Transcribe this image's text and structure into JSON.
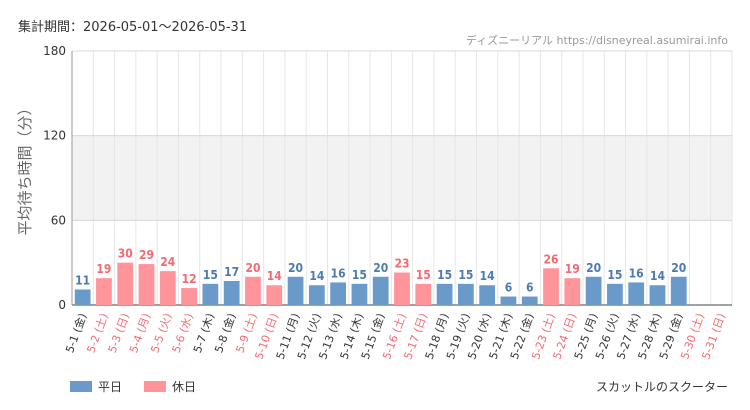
{
  "header": {
    "period_label": "集計期間：2026-05-01～2026-05-31",
    "credit": "ディズニーリアル https://disneyreal.asumirai.info"
  },
  "footer": {
    "attraction": "スカットルのスクーター"
  },
  "colors": {
    "weekday": "#6a9ac9",
    "holiday": "#ff949a",
    "weekday_text": "#4d7bb0",
    "holiday_text": "#f06b73",
    "band": "#f2f2f2",
    "grid": "#e6e6e6"
  },
  "chart_data": {
    "type": "bar",
    "title": "",
    "xlabel": "",
    "ylabel": "平均待ち時間（分）",
    "ylim": [
      0,
      180
    ],
    "yticks": [
      0,
      60,
      120,
      180
    ],
    "highlight_band": [
      60,
      120
    ],
    "legend": [
      {
        "label": "平日",
        "kind": "weekday"
      },
      {
        "label": "休日",
        "kind": "holiday"
      }
    ],
    "categories": [
      "5-1 (金)",
      "5-2 (土)",
      "5-3 (日)",
      "5-4 (月)",
      "5-5 (火)",
      "5-6 (水)",
      "5-7 (木)",
      "5-8 (金)",
      "5-9 (土)",
      "5-10 (日)",
      "5-11 (月)",
      "5-12 (火)",
      "5-13 (水)",
      "5-14 (木)",
      "5-15 (金)",
      "5-16 (土)",
      "5-17 (日)",
      "5-18 (月)",
      "5-19 (火)",
      "5-20 (水)",
      "5-21 (木)",
      "5-22 (金)",
      "5-23 (土)",
      "5-24 (日)",
      "5-25 (月)",
      "5-26 (火)",
      "5-27 (水)",
      "5-28 (木)",
      "5-29 (金)",
      "5-30 (土)",
      "5-31 (日)"
    ],
    "day_type": [
      "weekday",
      "holiday",
      "holiday",
      "holiday",
      "holiday",
      "holiday",
      "weekday",
      "weekday",
      "holiday",
      "holiday",
      "weekday",
      "weekday",
      "weekday",
      "weekday",
      "weekday",
      "holiday",
      "holiday",
      "weekday",
      "weekday",
      "weekday",
      "weekday",
      "weekday",
      "holiday",
      "holiday",
      "weekday",
      "weekday",
      "weekday",
      "weekday",
      "weekday",
      "holiday",
      "holiday"
    ],
    "values": [
      11,
      19,
      30,
      29,
      24,
      12,
      15,
      17,
      20,
      14,
      20,
      14,
      16,
      15,
      20,
      23,
      15,
      15,
      15,
      14,
      6,
      6,
      26,
      19,
      20,
      15,
      16,
      14,
      20,
      null,
      null
    ]
  }
}
